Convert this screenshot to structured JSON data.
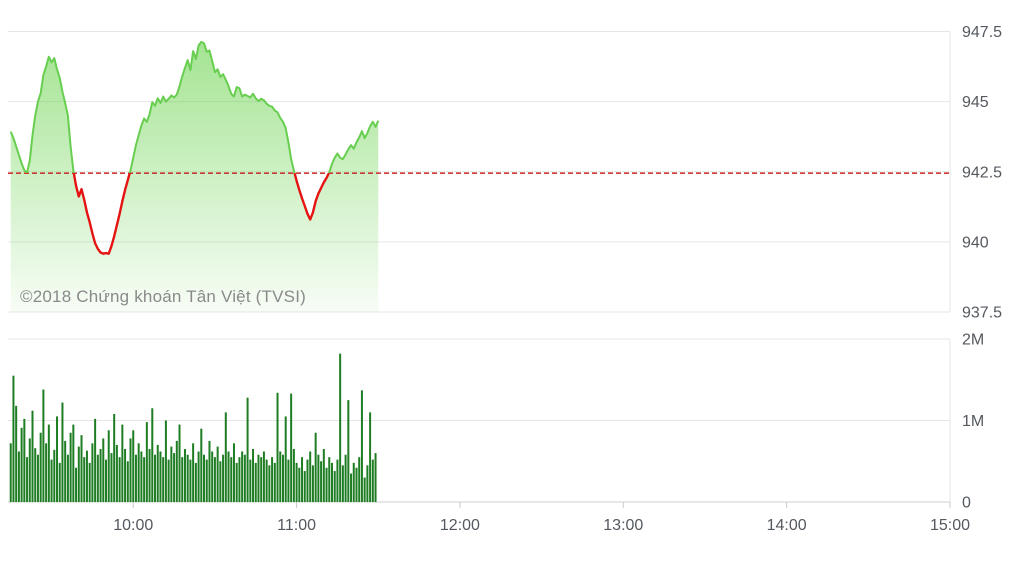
{
  "watermark": "©2018 Chứng khoán Tân Việt (TVSI)",
  "colors": {
    "price_line_up": "#68ce50",
    "price_line_down": "#e51413",
    "reference_line": "#cc3838",
    "area_gradient_top": "rgba(110,212,82,0.65)",
    "area_gradient_bottom": "rgba(110,212,82,0.05)",
    "volume_bar": "#1e7d23",
    "gridline": "#e6e6e6",
    "axis_line": "#cfcfcf",
    "tick_mark": "#c9c9c9",
    "label_text": "#54595f",
    "watermark_text": "#8a8a8a"
  },
  "chart_data": [
    {
      "type": "area",
      "title": "",
      "series_name": "intraday-index-price",
      "x_unit": "minute-of-day",
      "x_start": 555,
      "x_step": 1,
      "xlim": [
        554,
        900
      ],
      "x_ticks": [
        {
          "m": 600,
          "label": "10:00"
        },
        {
          "m": 660,
          "label": "11:00"
        },
        {
          "m": 720,
          "label": "12:00"
        },
        {
          "m": 780,
          "label": "13:00"
        },
        {
          "m": 840,
          "label": "14:00"
        },
        {
          "m": 900,
          "label": "15:00"
        }
      ],
      "ylim": [
        937.5,
        947.5
      ],
      "y_ticks": [
        {
          "v": 947.5,
          "label": "947.5"
        },
        {
          "v": 945,
          "label": "945"
        },
        {
          "v": 942.5,
          "label": "942.5"
        },
        {
          "v": 940,
          "label": "940"
        },
        {
          "v": 937.5,
          "label": "937.5"
        }
      ],
      "reference_value": 942.45,
      "grid": true,
      "legend": false,
      "values": [
        943.93,
        943.7,
        943.4,
        943.1,
        942.8,
        942.55,
        942.47,
        942.9,
        943.8,
        944.5,
        945.0,
        945.3,
        945.95,
        946.25,
        946.6,
        946.4,
        946.55,
        946.15,
        945.85,
        945.35,
        944.95,
        944.5,
        943.4,
        942.55,
        942.0,
        941.62,
        941.88,
        941.5,
        941.05,
        940.7,
        940.3,
        939.95,
        939.75,
        939.62,
        939.58,
        939.6,
        939.58,
        939.85,
        940.2,
        940.6,
        941.0,
        941.45,
        941.85,
        942.2,
        942.55,
        943.0,
        943.45,
        943.8,
        944.15,
        944.4,
        944.28,
        944.55,
        944.98,
        944.85,
        945.12,
        944.95,
        945.18,
        945.0,
        945.1,
        945.22,
        945.15,
        945.25,
        945.55,
        945.9,
        946.2,
        946.48,
        946.12,
        946.8,
        946.52,
        947.0,
        947.13,
        947.08,
        946.78,
        946.82,
        946.45,
        946.05,
        946.15,
        945.88,
        945.98,
        945.78,
        945.55,
        945.28,
        945.18,
        945.52,
        945.48,
        945.18,
        945.25,
        945.2,
        945.15,
        945.28,
        945.12,
        945.02,
        945.1,
        945.05,
        944.92,
        944.85,
        944.82,
        944.68,
        944.62,
        944.42,
        944.28,
        944.05,
        943.55,
        942.95,
        942.55,
        942.18,
        941.85,
        941.55,
        941.28,
        941.0,
        940.8,
        941.05,
        941.45,
        941.72,
        941.92,
        942.12,
        942.28,
        942.48,
        942.78,
        943.0,
        943.15,
        943.0,
        942.95,
        943.12,
        943.3,
        943.45,
        943.32,
        943.55,
        943.72,
        943.95,
        943.7,
        943.88,
        944.12,
        944.28,
        944.1,
        944.32
      ]
    },
    {
      "type": "bar",
      "title": "",
      "series_name": "intraday-volume",
      "x_unit": "minute-of-day",
      "x_start": 555,
      "x_step": 1,
      "xlim": [
        554,
        900
      ],
      "ylim": [
        0,
        2
      ],
      "y_ticks": [
        {
          "v": 2,
          "label": "2M"
        },
        {
          "v": 1,
          "label": "1M"
        },
        {
          "v": 0,
          "label": "0"
        }
      ],
      "grid": true,
      "legend": false,
      "values_millions": [
        0.72,
        1.55,
        1.18,
        0.62,
        0.91,
        1.02,
        0.55,
        0.78,
        1.12,
        0.66,
        0.58,
        0.85,
        1.38,
        0.72,
        0.95,
        0.52,
        0.64,
        1.05,
        0.48,
        1.22,
        0.75,
        0.58,
        0.85,
        0.95,
        0.42,
        0.68,
        0.82,
        0.55,
        0.63,
        0.48,
        0.72,
        1.02,
        0.58,
        0.65,
        0.78,
        0.52,
        0.88,
        0.6,
        1.08,
        0.7,
        0.55,
        0.95,
        0.65,
        0.5,
        0.78,
        0.88,
        0.58,
        0.72,
        0.62,
        0.55,
        0.98,
        0.65,
        1.15,
        0.58,
        0.7,
        0.62,
        0.55,
        1.0,
        0.52,
        0.68,
        0.6,
        0.75,
        0.95,
        0.55,
        0.65,
        0.58,
        0.52,
        0.72,
        0.48,
        0.62,
        0.9,
        0.58,
        0.52,
        0.75,
        0.62,
        0.55,
        0.68,
        0.5,
        0.58,
        1.1,
        0.62,
        0.55,
        0.72,
        0.48,
        0.55,
        0.62,
        0.58,
        1.28,
        0.52,
        0.65,
        0.48,
        0.58,
        0.55,
        0.62,
        0.52,
        0.45,
        0.55,
        0.48,
        1.34,
        0.62,
        0.58,
        1.05,
        0.52,
        1.33,
        0.65,
        0.48,
        0.42,
        0.55,
        0.38,
        0.52,
        0.62,
        0.45,
        0.85,
        0.58,
        0.5,
        0.65,
        0.42,
        0.55,
        0.48,
        0.38,
        0.52,
        1.82,
        0.45,
        0.58,
        1.25,
        0.35,
        0.48,
        0.42,
        0.55,
        1.37,
        0.3,
        0.45,
        1.1,
        0.52,
        0.6
      ]
    }
  ]
}
